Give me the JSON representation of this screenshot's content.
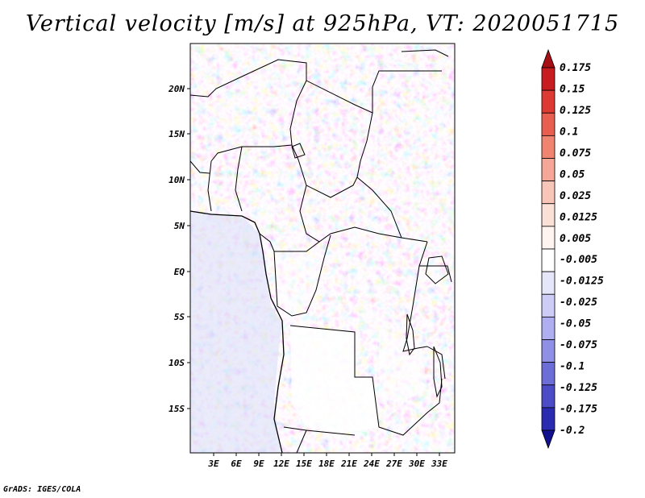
{
  "title": "Vertical velocity [m/s] at 925hPa, VT: 2020051715",
  "credit": "GrADS: IGES/COLA",
  "map": {
    "lat_labels": [
      "20N",
      "15N",
      "10N",
      "5N",
      "EQ",
      "5S",
      "10S",
      "15S"
    ],
    "lon_labels": [
      "3E",
      "6E",
      "9E",
      "12E",
      "15E",
      "18E",
      "21E",
      "24E",
      "27E",
      "30E",
      "33E"
    ]
  },
  "colorbar": {
    "labels": [
      "0.175",
      "0.15",
      "0.125",
      "0.1",
      "0.075",
      "0.05",
      "0.025",
      "0.0125",
      "0.005",
      "-0.005",
      "-0.0125",
      "-0.025",
      "-0.05",
      "-0.075",
      "-0.1",
      "-0.125",
      "-0.175",
      "-0.2"
    ],
    "colors": [
      "#a50f15",
      "#c71d20",
      "#dd3a33",
      "#e95f4f",
      "#ef8571",
      "#f4a796",
      "#f8c6b9",
      "#fbe0d8",
      "#fff4f0",
      "#ffffff",
      "#e6e6fb",
      "#ccccf6",
      "#aeaef0",
      "#8f8fe5",
      "#6d6dd8",
      "#4c4cc7",
      "#2b2bb2",
      "#11118f"
    ]
  }
}
